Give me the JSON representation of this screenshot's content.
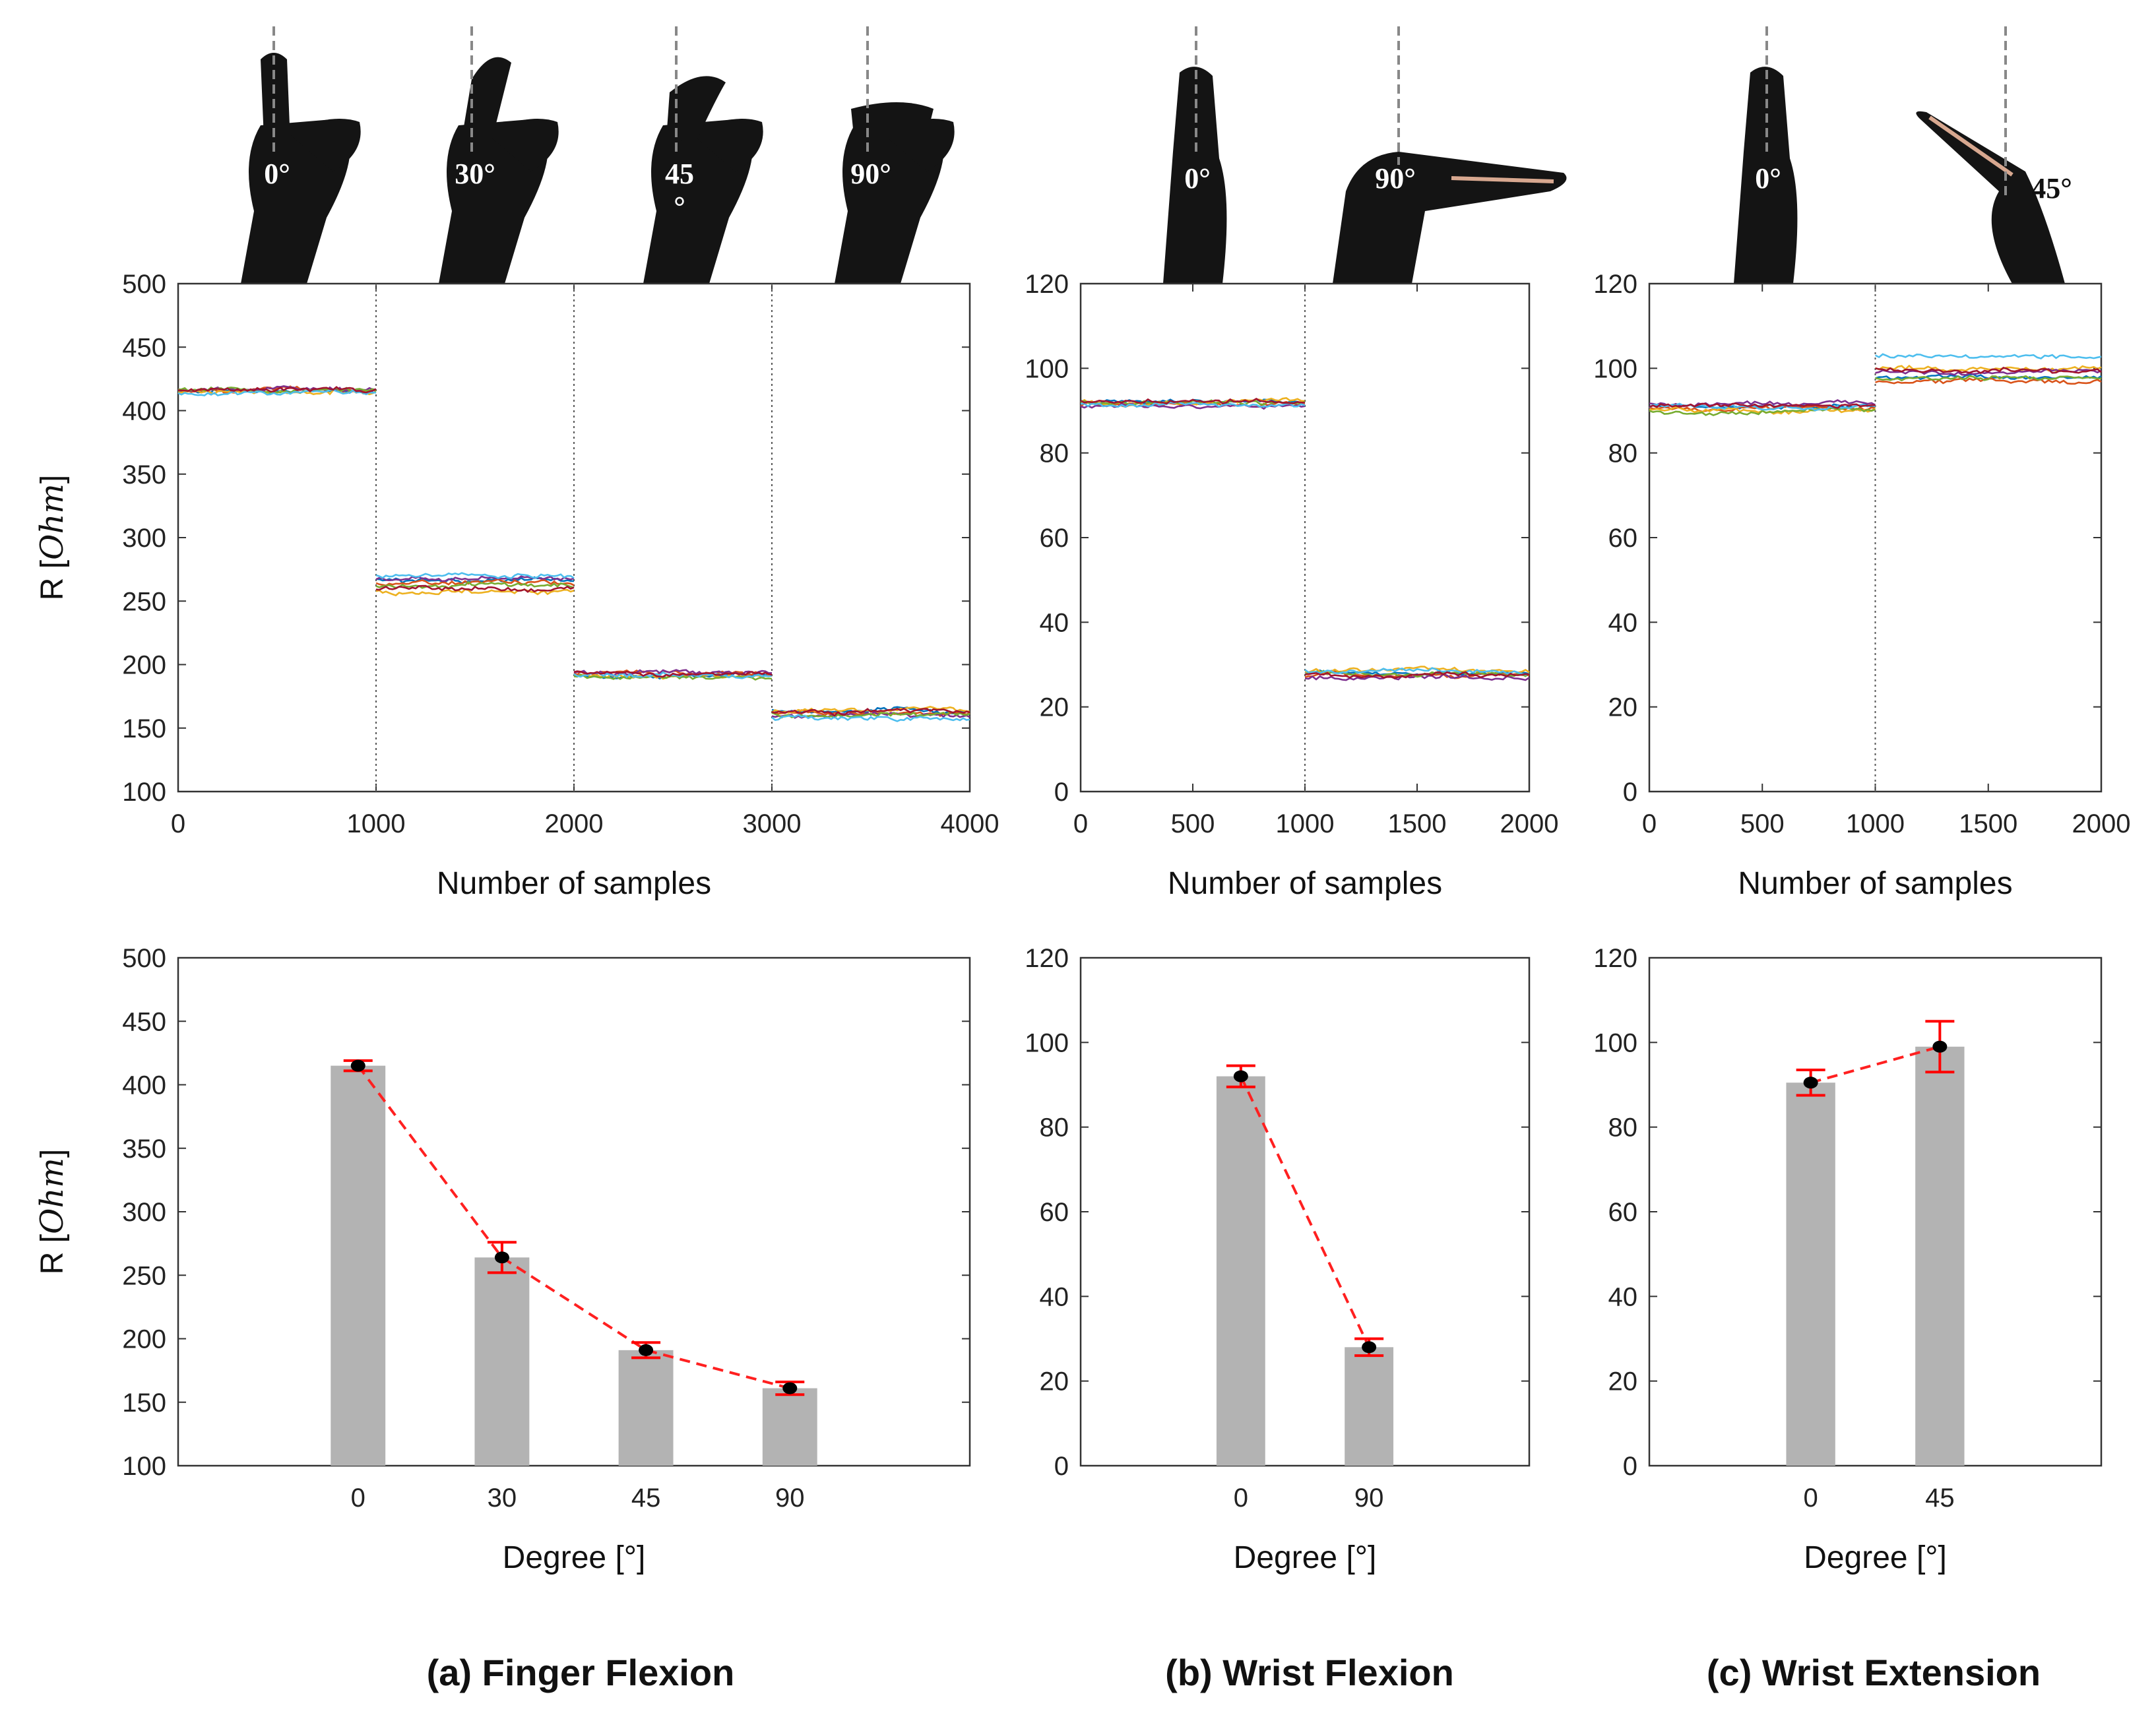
{
  "figure": {
    "captions": [
      "(a) Finger Flexion",
      "(b) Wrist Flexion",
      "(c) Wrist Extension"
    ],
    "gestures": [
      {
        "angles": [
          "0°",
          "30°",
          "45\n°",
          "90°"
        ]
      },
      {
        "angles": [
          "0°",
          "90°"
        ]
      },
      {
        "angles": [
          "0°",
          "45°"
        ]
      }
    ],
    "colors": {
      "bar": "#b3b3b3",
      "trend": "#ff2020",
      "errorbar": "#ff0000",
      "marker": "#000000",
      "glove": "#141414",
      "guide": "#888888",
      "series_palette": [
        "#0072bd",
        "#d95319",
        "#edb120",
        "#7e2f8e",
        "#77ac30",
        "#4dbeee",
        "#a2142f",
        "#ffa500"
      ]
    }
  },
  "chart_data": [
    {
      "type": "line",
      "panel": "a-top",
      "xlabel": "Number of samples",
      "ylabel": "R [Ohm]",
      "ylabel_italic": "Ohm",
      "xlim": [
        0,
        4000
      ],
      "ylim": [
        100,
        500
      ],
      "xticks": [
        0,
        1000,
        2000,
        3000,
        4000
      ],
      "yticks": [
        100,
        150,
        200,
        250,
        300,
        350,
        400,
        450,
        500
      ],
      "dividers": [
        1000,
        2000,
        3000
      ],
      "segments": [
        {
          "x": [
            0,
            1000
          ],
          "levels": [
            416,
            417,
            415,
            418,
            416,
            414,
            417
          ]
        },
        {
          "x": [
            1000,
            2000
          ],
          "levels": [
            266,
            264,
            258,
            268,
            262,
            270,
            260
          ]
        },
        {
          "x": [
            2000,
            3000
          ],
          "levels": [
            192,
            193,
            191,
            194,
            190,
            192,
            193
          ]
        },
        {
          "x": [
            3000,
            4000
          ],
          "levels": [
            163,
            162,
            164,
            160,
            161,
            158,
            163
          ]
        }
      ]
    },
    {
      "type": "line",
      "panel": "b-top",
      "xlabel": "Number of samples",
      "xlim": [
        0,
        2000
      ],
      "ylim": [
        0,
        120
      ],
      "xticks": [
        0,
        500,
        1000,
        1500,
        2000
      ],
      "yticks": [
        0,
        20,
        40,
        60,
        80,
        100,
        120
      ],
      "dividers": [
        1000
      ],
      "segments": [
        {
          "x": [
            0,
            1000
          ],
          "levels": [
            92,
            91.5,
            92.5,
            91,
            92,
            91.5,
            92.2
          ]
        },
        {
          "x": [
            1000,
            2000
          ],
          "levels": [
            28,
            27.5,
            28.5,
            27,
            28,
            28.3,
            27.8
          ]
        }
      ]
    },
    {
      "type": "line",
      "panel": "c-top",
      "xlabel": "Number of samples",
      "xlim": [
        0,
        2000
      ],
      "ylim": [
        0,
        120
      ],
      "xticks": [
        0,
        500,
        1000,
        1500,
        2000
      ],
      "yticks": [
        0,
        20,
        40,
        60,
        80,
        100,
        120
      ],
      "dividers": [
        1000
      ],
      "segments": [
        {
          "x": [
            0,
            1000
          ],
          "levels": [
            91,
            90.5,
            90,
            91.5,
            90,
            90.8,
            91.2
          ]
        },
        {
          "x": [
            1000,
            2000
          ],
          "levels": [
            98,
            97,
            100,
            99,
            97.5,
            103,
            99.5
          ]
        }
      ]
    },
    {
      "type": "bar",
      "panel": "a-bottom",
      "xlabel": "Degree [°]",
      "ylabel": "R [Ohm]",
      "ylabel_italic": "Ohm",
      "ylim": [
        100,
        500
      ],
      "yticks": [
        100,
        150,
        200,
        250,
        300,
        350,
        400,
        450,
        500
      ],
      "categories": [
        "0",
        "30",
        "45",
        "90"
      ],
      "values": [
        415,
        264,
        191,
        161
      ],
      "errors": [
        4,
        12,
        6,
        5
      ]
    },
    {
      "type": "bar",
      "panel": "b-bottom",
      "xlabel": "Degree [°]",
      "ylim": [
        0,
        120
      ],
      "yticks": [
        0,
        20,
        40,
        60,
        80,
        100,
        120
      ],
      "categories": [
        "0",
        "90"
      ],
      "values": [
        92,
        28
      ],
      "errors": [
        2.5,
        2
      ]
    },
    {
      "type": "bar",
      "panel": "c-bottom",
      "xlabel": "Degree [°]",
      "ylim": [
        0,
        120
      ],
      "yticks": [
        0,
        20,
        40,
        60,
        80,
        100,
        120
      ],
      "categories": [
        "0",
        "45"
      ],
      "values": [
        90.5,
        99
      ],
      "errors": [
        3,
        6
      ]
    }
  ]
}
